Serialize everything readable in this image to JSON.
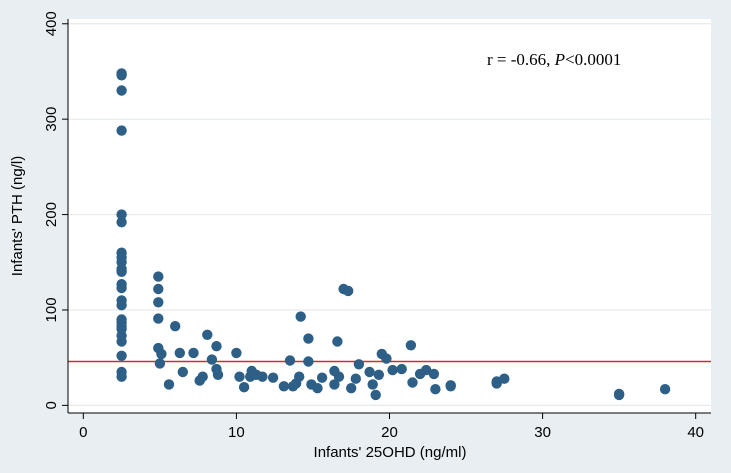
{
  "chart_data": {
    "type": "scatter",
    "xlabel": "Infants' 25OHD (ng/ml)",
    "ylabel": "Infants' PTH (ng/l)",
    "xlim": [
      -1,
      41
    ],
    "ylim": [
      -8,
      405
    ],
    "xticks": [
      0,
      10,
      20,
      30,
      40
    ],
    "yticks": [
      0,
      100,
      200,
      300,
      400
    ],
    "grid": "horizontal",
    "annotation": {
      "prefix": "r = -0.66, ",
      "p_label": "P",
      "p_suffix": "<0.0001",
      "position": "top-right"
    },
    "reference_line": {
      "y": 46,
      "color": "#d42a2a"
    },
    "colors": {
      "background": "#e8eef2",
      "plot_area": "#ffffff",
      "grid": "#e4eaee",
      "point": "#2d5f87",
      "axis": "#000000"
    },
    "points": [
      [
        2.5,
        348
      ],
      [
        2.5,
        346
      ],
      [
        2.5,
        330
      ],
      [
        2.5,
        288
      ],
      [
        2.5,
        200
      ],
      [
        2.5,
        192
      ],
      [
        2.5,
        160
      ],
      [
        2.5,
        155
      ],
      [
        2.5,
        150
      ],
      [
        2.5,
        143
      ],
      [
        2.5,
        140
      ],
      [
        2.5,
        127
      ],
      [
        2.5,
        123
      ],
      [
        2.5,
        110
      ],
      [
        2.5,
        105
      ],
      [
        2.5,
        90
      ],
      [
        2.5,
        87
      ],
      [
        2.5,
        83
      ],
      [
        2.5,
        80
      ],
      [
        2.5,
        73
      ],
      [
        2.5,
        67
      ],
      [
        2.5,
        52
      ],
      [
        2.5,
        35
      ],
      [
        2.5,
        30
      ],
      [
        4.9,
        135
      ],
      [
        4.9,
        122
      ],
      [
        4.9,
        108
      ],
      [
        4.9,
        91
      ],
      [
        4.9,
        60
      ],
      [
        5.1,
        54
      ],
      [
        5.0,
        44
      ],
      [
        5.6,
        22
      ],
      [
        6.0,
        83
      ],
      [
        6.3,
        55
      ],
      [
        6.5,
        35
      ],
      [
        7.2,
        55
      ],
      [
        7.6,
        26
      ],
      [
        7.8,
        30
      ],
      [
        8.1,
        74
      ],
      [
        8.4,
        48
      ],
      [
        8.7,
        62
      ],
      [
        8.7,
        38
      ],
      [
        8.8,
        32
      ],
      [
        10.0,
        55
      ],
      [
        10.2,
        30
      ],
      [
        10.5,
        19
      ],
      [
        10.9,
        30
      ],
      [
        11.0,
        36
      ],
      [
        11.3,
        32
      ],
      [
        11.7,
        30
      ],
      [
        12.4,
        29
      ],
      [
        13.1,
        20
      ],
      [
        13.5,
        47
      ],
      [
        13.7,
        20
      ],
      [
        13.9,
        23
      ],
      [
        14.1,
        30
      ],
      [
        14.2,
        93
      ],
      [
        14.7,
        70
      ],
      [
        14.7,
        46
      ],
      [
        14.9,
        22
      ],
      [
        15.3,
        18
      ],
      [
        15.6,
        29
      ],
      [
        16.4,
        22
      ],
      [
        16.4,
        36
      ],
      [
        16.6,
        67
      ],
      [
        16.7,
        30
      ],
      [
        17.0,
        122
      ],
      [
        17.3,
        120
      ],
      [
        17.5,
        18
      ],
      [
        17.8,
        28
      ],
      [
        18.0,
        43
      ],
      [
        18.7,
        35
      ],
      [
        18.9,
        22
      ],
      [
        19.1,
        11
      ],
      [
        19.3,
        32
      ],
      [
        19.5,
        54
      ],
      [
        19.8,
        49
      ],
      [
        20.2,
        37
      ],
      [
        20.8,
        38
      ],
      [
        21.4,
        63
      ],
      [
        21.5,
        24
      ],
      [
        22.0,
        33
      ],
      [
        22.4,
        37
      ],
      [
        22.9,
        33
      ],
      [
        23.0,
        17
      ],
      [
        24.0,
        21
      ],
      [
        24.0,
        20
      ],
      [
        27.0,
        23
      ],
      [
        27.0,
        25
      ],
      [
        27.5,
        28
      ],
      [
        35.0,
        12
      ],
      [
        35.0,
        11
      ],
      [
        38.0,
        17
      ]
    ]
  }
}
